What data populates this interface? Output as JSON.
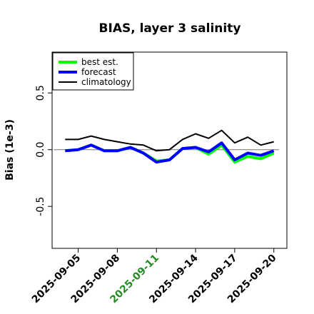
{
  "chart_data": {
    "type": "line",
    "title": "BIAS, layer 3 salinity",
    "ylabel": "Bias (1e-3)",
    "xlabel": "",
    "dates": [
      "2025-09-04",
      "2025-09-05",
      "2025-09-06",
      "2025-09-07",
      "2025-09-08",
      "2025-09-09",
      "2025-09-10",
      "2025-09-11",
      "2025-09-12",
      "2025-09-13",
      "2025-09-14",
      "2025-09-15",
      "2025-09-16",
      "2025-09-17",
      "2025-09-18",
      "2025-09-19",
      "2025-09-20"
    ],
    "xtick_labels": [
      "2025-09-05",
      "2025-09-08",
      "2025-09-11",
      "2025-09-14",
      "2025-09-17",
      "2025-09-20"
    ],
    "highlight_tick": "2025-09-11",
    "highlight_color": "#228b22",
    "yticks": [
      -0.5,
      0.0,
      0.5
    ],
    "ytick_labels": [
      "-0.5",
      "0.0",
      "0.5"
    ],
    "ylim": [
      -0.87,
      0.86
    ],
    "xlim": [
      "2025-09-03",
      "2025-09-21"
    ],
    "reference_line": 0,
    "series": [
      {
        "name": "best est.",
        "color": "#00ff00",
        "width": 4,
        "values": [
          -0.01,
          0.0,
          0.04,
          -0.01,
          -0.01,
          0.02,
          -0.03,
          -0.1,
          -0.09,
          0.01,
          0.02,
          -0.04,
          0.04,
          -0.11,
          -0.06,
          -0.08,
          -0.03
        ]
      },
      {
        "name": "forecast",
        "color": "#0000ff",
        "width": 4,
        "values": [
          -0.01,
          0.0,
          0.04,
          -0.01,
          -0.01,
          0.02,
          -0.03,
          -0.11,
          -0.09,
          0.01,
          0.02,
          -0.02,
          0.06,
          -0.09,
          -0.03,
          -0.05,
          -0.01
        ]
      },
      {
        "name": "climatology",
        "color": "#000000",
        "width": 2,
        "values": [
          0.09,
          0.09,
          0.12,
          0.09,
          0.07,
          0.05,
          0.04,
          -0.01,
          0.0,
          0.09,
          0.14,
          0.1,
          0.17,
          0.06,
          0.11,
          0.04,
          0.07
        ]
      }
    ],
    "legend": {
      "placement": "top-left",
      "entries": [
        "best est.",
        "forecast",
        "climatology"
      ]
    },
    "grid": false
  }
}
